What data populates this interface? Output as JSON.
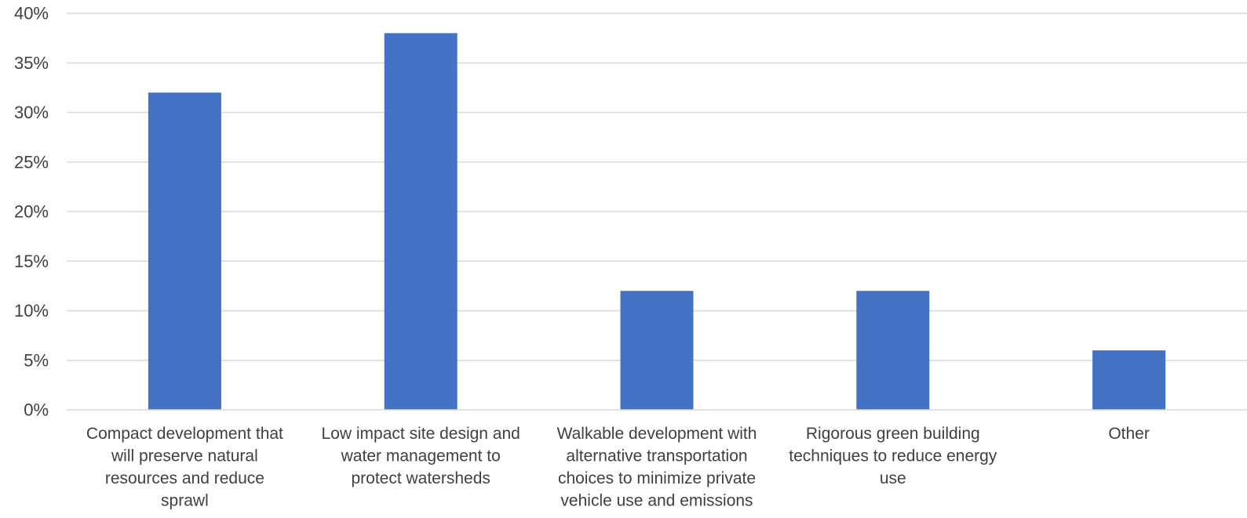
{
  "chart_data": {
    "type": "bar",
    "title": "",
    "xlabel": "",
    "ylabel": "",
    "categories": [
      "Compact development that will preserve natural resources and reduce sprawl",
      "Low impact site design and water management to protect watersheds",
      "Walkable development with alternative transportation choices to minimize private vehicle use and emissions",
      "Rigorous green building techniques to reduce energy use",
      "Other"
    ],
    "category_label_lines": [
      [
        "Compact development that",
        "will preserve natural",
        "resources and reduce",
        "sprawl"
      ],
      [
        "Low impact site design and",
        "water management to",
        "protect watersheds"
      ],
      [
        "Walkable development with",
        "alternative transportation",
        "choices to minimize private",
        "vehicle use and emissions"
      ],
      [
        "Rigorous green building",
        "techniques to reduce energy",
        "use"
      ],
      [
        "Other"
      ]
    ],
    "series": [
      {
        "values": [
          32,
          38,
          12,
          12,
          6
        ]
      }
    ],
    "ylim": [
      0,
      40
    ],
    "y_ticks": [
      0,
      5,
      10,
      15,
      20,
      25,
      30,
      35,
      40
    ],
    "y_tick_labels": [
      "0%",
      "5%",
      "10%",
      "15%",
      "20%",
      "25%",
      "30%",
      "35%",
      "40%"
    ],
    "grid": true,
    "legend": "none",
    "colors": {
      "bar": "#4472c4",
      "grid": "#d9d9d9",
      "text": "#404040"
    }
  }
}
